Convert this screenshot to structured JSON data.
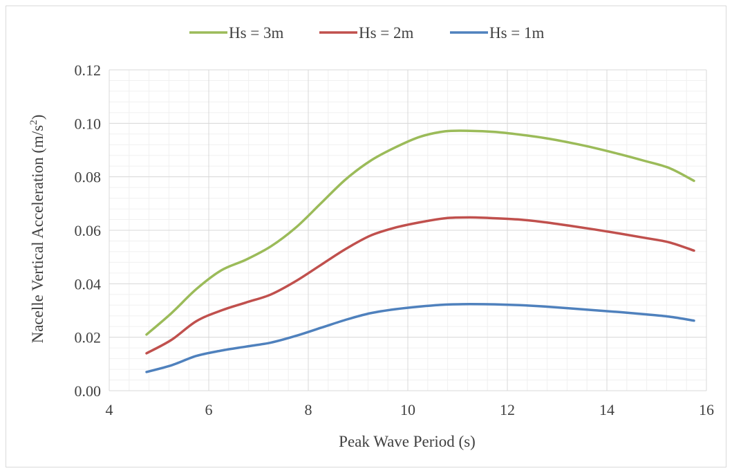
{
  "chart_data": {
    "type": "line",
    "xlabel": "Peak Wave Period (s)",
    "ylabel": "Nacelle Vertical Acceleration (m/s",
    "ylabel_sup": "2",
    "ylabel_end": ")",
    "xlim": [
      4,
      16
    ],
    "ylim": [
      0,
      0.12
    ],
    "xticks": [
      "4",
      "6",
      "8",
      "10",
      "12",
      "14",
      "16"
    ],
    "yticks": [
      "0.00",
      "0.02",
      "0.04",
      "0.06",
      "0.08",
      "0.10",
      "0.12"
    ],
    "grid": true,
    "legend_position": "top",
    "series": [
      {
        "name": "Hs = 3m",
        "color": "#9bbb59",
        "x": [
          4.75,
          5.25,
          5.75,
          6.25,
          6.75,
          7.25,
          7.75,
          8.25,
          8.75,
          9.25,
          9.75,
          10.25,
          10.75,
          11.25,
          11.75,
          12.25,
          12.75,
          13.25,
          13.75,
          14.25,
          14.75,
          15.25,
          15.75
        ],
        "y": [
          0.021,
          0.029,
          0.038,
          0.045,
          0.049,
          0.054,
          0.061,
          0.07,
          0.079,
          0.086,
          0.091,
          0.095,
          0.097,
          0.0972,
          0.0968,
          0.0958,
          0.0945,
          0.0928,
          0.0908,
          0.0885,
          0.086,
          0.0833,
          0.0785
        ]
      },
      {
        "name": "Hs = 2m",
        "color": "#c0504d",
        "x": [
          4.75,
          5.25,
          5.75,
          6.25,
          6.75,
          7.25,
          7.75,
          8.25,
          8.75,
          9.25,
          9.75,
          10.25,
          10.75,
          11.25,
          11.75,
          12.25,
          12.75,
          13.25,
          13.75,
          14.25,
          14.75,
          15.25,
          15.75
        ],
        "y": [
          0.014,
          0.019,
          0.026,
          0.03,
          0.033,
          0.036,
          0.041,
          0.047,
          0.053,
          0.058,
          0.061,
          0.063,
          0.0645,
          0.0648,
          0.0645,
          0.064,
          0.063,
          0.0617,
          0.0603,
          0.0588,
          0.0572,
          0.0555,
          0.0524
        ]
      },
      {
        "name": "Hs = 1m",
        "color": "#4f81bd",
        "x": [
          4.75,
          5.25,
          5.75,
          6.25,
          6.75,
          7.25,
          7.75,
          8.25,
          8.75,
          9.25,
          9.75,
          10.25,
          10.75,
          11.25,
          11.75,
          12.25,
          12.75,
          13.25,
          13.75,
          14.25,
          14.75,
          15.25,
          15.75
        ],
        "y": [
          0.007,
          0.0095,
          0.013,
          0.015,
          0.0165,
          0.018,
          0.0205,
          0.0235,
          0.0265,
          0.029,
          0.0305,
          0.0315,
          0.0322,
          0.0324,
          0.0323,
          0.032,
          0.0315,
          0.0308,
          0.0301,
          0.0294,
          0.0286,
          0.0277,
          0.0262
        ]
      }
    ]
  }
}
